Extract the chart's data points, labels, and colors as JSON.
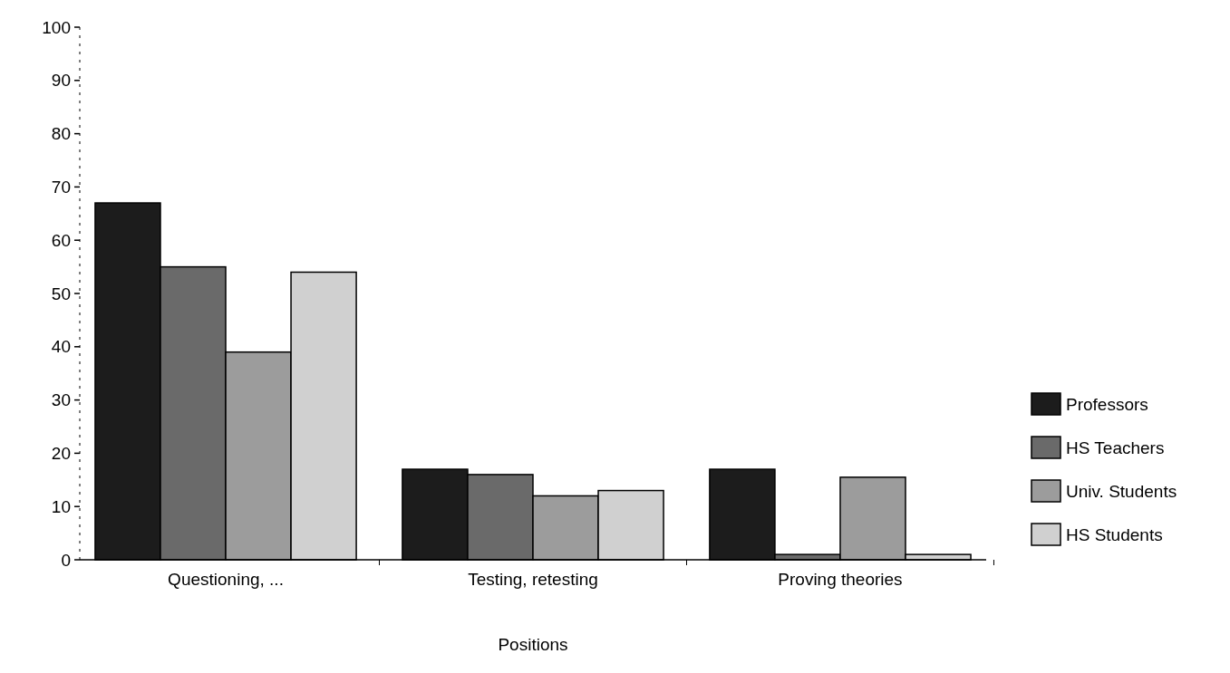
{
  "chart_data": {
    "type": "bar",
    "xlabel": "Positions",
    "categories": [
      "Questioning, ...",
      "Testing, retesting",
      "Proving theories"
    ],
    "series": [
      {
        "name": "Professors",
        "color": "#1c1c1c",
        "values": [
          67,
          17,
          17
        ]
      },
      {
        "name": "HS Teachers",
        "color": "#6a6a6a",
        "values": [
          55,
          16,
          1
        ]
      },
      {
        "name": "Univ. Students",
        "color": "#9c9c9c",
        "values": [
          39,
          12,
          15.5
        ]
      },
      {
        "name": "HS Students",
        "color": "#d0d0d0",
        "values": [
          54,
          13,
          1
        ]
      }
    ],
    "ylim": [
      0,
      100
    ],
    "yticks": [
      0,
      10,
      20,
      30,
      40,
      50,
      60,
      70,
      80,
      90,
      100
    ],
    "grid": false,
    "legend": "right"
  }
}
